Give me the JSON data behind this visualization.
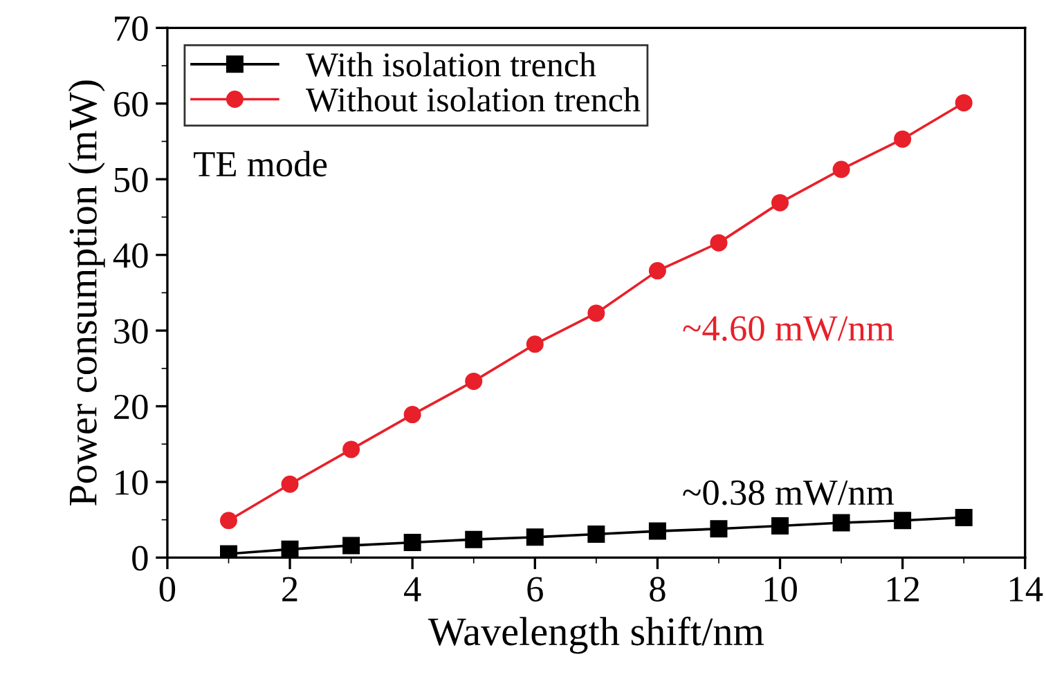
{
  "chart_data": {
    "type": "line",
    "xlabel": "Wavelength shift/nm",
    "ylabel": "Power consumption (mW)",
    "x": [
      1,
      2,
      3,
      4,
      5,
      6,
      7,
      8,
      9,
      10,
      11,
      12,
      13
    ],
    "series": [
      {
        "name": "With isolation trench",
        "color": "#000000",
        "marker": "square",
        "values": [
          0.5,
          1.1,
          1.6,
          2.0,
          2.4,
          2.7,
          3.1,
          3.5,
          3.8,
          4.2,
          4.6,
          4.9,
          5.3
        ]
      },
      {
        "name": "Without isolation trench",
        "color": "#e8202a",
        "marker": "circle",
        "values": [
          4.9,
          9.7,
          14.3,
          18.9,
          23.3,
          28.2,
          32.3,
          37.9,
          41.6,
          46.9,
          51.3,
          55.3,
          60.1
        ]
      }
    ],
    "xlim": [
      0,
      14
    ],
    "xticks": [
      0,
      2,
      4,
      6,
      8,
      10,
      12,
      14
    ],
    "ylim": [
      0,
      70
    ],
    "yticks": [
      0,
      10,
      20,
      30,
      40,
      50,
      60,
      70
    ],
    "annotations": [
      "~4.60 mW/nm",
      "~0.38 mW/nm",
      "TE mode"
    ],
    "legend": "top left",
    "grid": false,
    "line_style": "solid"
  }
}
